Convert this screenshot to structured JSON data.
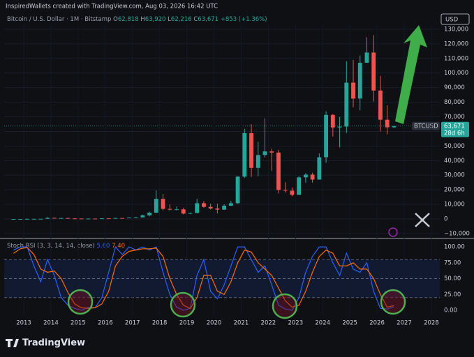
{
  "header": {
    "watermark": "InspiredWallets created with TradingView.com, Aug 03, 2026 16:42 UTC",
    "currency": "USD",
    "brand": "TradingView"
  },
  "chart_data": [
    {
      "type": "candlestick",
      "title": "Bitcoin / U.S. Dollar · 1M · Bitstamp",
      "ohlc_legend": [
        {
          "label": "O",
          "value": "62,818"
        },
        {
          "label": "H",
          "value": "63,920"
        },
        {
          "label": "L",
          "value": "62,216"
        },
        {
          "label": "C",
          "value": "63,671"
        }
      ],
      "change": "+853 (+1.36%)",
      "symbol": "BTCUSD",
      "last_price": {
        "value": 63671,
        "label": "63,671"
      },
      "countdown": "28d 6h",
      "up_color": "#26a69a",
      "down_color": "#ef5350",
      "x": [
        2012.625,
        2012.875,
        2013.125,
        2013.375,
        2013.625,
        2013.875,
        2014.125,
        2014.375,
        2014.625,
        2014.875,
        2015.125,
        2015.375,
        2015.625,
        2015.875,
        2016.125,
        2016.375,
        2016.625,
        2016.875,
        2017.125,
        2017.375,
        2017.625,
        2017.875,
        2018.125,
        2018.375,
        2018.625,
        2018.875,
        2019.125,
        2019.375,
        2019.625,
        2019.875,
        2020.125,
        2020.375,
        2020.625,
        2020.875,
        2021.125,
        2021.375,
        2021.625,
        2021.875,
        2022.125,
        2022.375,
        2022.625,
        2022.875,
        2023.125,
        2023.375,
        2023.625,
        2023.875,
        2024.125,
        2024.375,
        2024.625,
        2024.875,
        2025.125,
        2025.375,
        2025.625,
        2025.875,
        2026.125,
        2026.375,
        2026.625
      ],
      "open": [
        7,
        12,
        13,
        93,
        97,
        125,
        750,
        450,
        640,
        390,
        320,
        245,
        265,
        235,
        430,
        415,
        670,
        610,
        960,
        1080,
        2500,
        4300,
        13800,
        6900,
        6400,
        6600,
        3700,
        4100,
        10800,
        8300,
        7200,
        6400,
        9100,
        10800,
        29000,
        58800,
        35000,
        43800,
        46300,
        45500,
        19900,
        19400,
        16500,
        28500,
        30400,
        27000,
        42300,
        71300,
        62700,
        63300,
        93400,
        82500,
        107000,
        114000,
        88000,
        68000,
        62818
      ],
      "high": [
        15,
        13,
        266,
        130,
        200,
        1160,
        1000,
        680,
        650,
        460,
        320,
        300,
        300,
        500,
        440,
        780,
        670,
        980,
        1350,
        3000,
        5000,
        19600,
        17200,
        9900,
        8500,
        7500,
        4200,
        13800,
        12300,
        10500,
        10500,
        10000,
        12500,
        29300,
        61800,
        64900,
        52900,
        69000,
        48200,
        47400,
        25200,
        21500,
        29200,
        31400,
        31800,
        45000,
        73800,
        72000,
        70000,
        108000,
        109000,
        112000,
        124500,
        126000,
        98000,
        78000,
        63920
      ],
      "low": [
        7,
        10,
        13,
        65,
        85,
        120,
        400,
        420,
        330,
        300,
        170,
        220,
        200,
        230,
        360,
        410,
        540,
        600,
        750,
        1050,
        1800,
        4200,
        5900,
        5800,
        5900,
        3100,
        3300,
        4000,
        7700,
        6500,
        3800,
        6200,
        8900,
        10400,
        28100,
        28800,
        29300,
        42000,
        32900,
        17600,
        18100,
        15500,
        16500,
        24700,
        24900,
        26900,
        38500,
        56500,
        49000,
        58900,
        76500,
        74500,
        107000,
        80500,
        60000,
        58000,
        62216
      ],
      "close": [
        12,
        13,
        93,
        97,
        125,
        750,
        450,
        640,
        390,
        320,
        245,
        265,
        235,
        430,
        415,
        670,
        610,
        960,
        1080,
        2500,
        4300,
        13800,
        6900,
        6400,
        6600,
        3700,
        4100,
        10800,
        8300,
        7200,
        6400,
        9100,
        10800,
        29000,
        58800,
        35000,
        43800,
        46300,
        45500,
        19900,
        19400,
        16500,
        28500,
        30400,
        27000,
        42300,
        71300,
        62700,
        63300,
        93400,
        82500,
        107000,
        114000,
        88000,
        68000,
        62800,
        63671
      ],
      "xlim": [
        2012.28,
        2028.31
      ],
      "ylim": [
        -12400,
        133300
      ],
      "yticks": [
        {
          "value": 130000,
          "label": "130,000"
        },
        {
          "value": 120000,
          "label": "120,000"
        },
        {
          "value": 110000,
          "label": "110,000"
        },
        {
          "value": 100000,
          "label": "100,000"
        },
        {
          "value": 90000,
          "label": "90,000"
        },
        {
          "value": 80000,
          "label": "80,000"
        },
        {
          "value": 70000,
          "label": "70,000"
        },
        {
          "value": 60000,
          "label": "60,000"
        },
        {
          "value": 50000,
          "label": "50,000"
        },
        {
          "value": 40000,
          "label": "40,000"
        },
        {
          "value": 30000,
          "label": "30,000"
        },
        {
          "value": 20000,
          "label": "20,000"
        },
        {
          "value": 10000,
          "label": "10,000"
        },
        0,
        {
          "value": -10000,
          "label": "−10,000"
        }
      ],
      "grid": true
    },
    {
      "type": "line",
      "title": "Stoch RSI (3, 3, 14, 14, close)",
      "x": [
        2012.625,
        2012.875,
        2013.125,
        2013.375,
        2013.625,
        2013.875,
        2014.125,
        2014.375,
        2014.625,
        2014.875,
        2015.125,
        2015.375,
        2015.625,
        2015.875,
        2016.125,
        2016.375,
        2016.625,
        2016.875,
        2017.125,
        2017.375,
        2017.625,
        2017.875,
        2018.125,
        2018.375,
        2018.625,
        2018.875,
        2019.125,
        2019.375,
        2019.625,
        2019.875,
        2020.125,
        2020.375,
        2020.625,
        2020.875,
        2021.125,
        2021.375,
        2021.625,
        2021.875,
        2022.125,
        2022.375,
        2022.625,
        2022.875,
        2023.125,
        2023.375,
        2023.625,
        2023.875,
        2024.125,
        2024.375,
        2024.625,
        2024.875,
        2025.125,
        2025.375,
        2025.625,
        2025.875,
        2026.125,
        2026.375,
        2026.625
      ],
      "series": [
        {
          "color": "#2962ff",
          "legend_value": "5.60",
          "values": [
            95,
            100,
            100,
            70,
            45,
            80,
            55,
            20,
            8,
            3,
            0,
            5,
            4,
            20,
            60,
            100,
            88,
            100,
            95,
            100,
            95,
            100,
            60,
            25,
            5,
            0,
            3,
            55,
            80,
            30,
            18,
            40,
            70,
            100,
            100,
            80,
            60,
            70,
            40,
            8,
            2,
            0,
            20,
            60,
            85,
            100,
            100,
            75,
            55,
            90,
            65,
            60,
            75,
            30,
            3,
            2,
            5.6
          ]
        },
        {
          "color": "#ff6d00",
          "legend_value": "7.40",
          "values": [
            90,
            97,
            99,
            88,
            65,
            60,
            62,
            50,
            28,
            10,
            4,
            3,
            4,
            10,
            30,
            70,
            85,
            93,
            95,
            97,
            97,
            98,
            85,
            50,
            25,
            8,
            3,
            20,
            55,
            55,
            30,
            25,
            45,
            75,
            95,
            92,
            75,
            65,
            55,
            35,
            15,
            5,
            8,
            30,
            60,
            85,
            95,
            90,
            70,
            70,
            75,
            65,
            65,
            50,
            25,
            5,
            7.4
          ]
        }
      ],
      "band": [
        20,
        80
      ],
      "levels": [
        20,
        50,
        80
      ],
      "xlim": [
        2012.28,
        2028.31
      ],
      "xticks": [
        2013,
        2014,
        2015,
        2016,
        2017,
        2018,
        2019,
        2020,
        2021,
        2022,
        2023,
        2024,
        2025,
        2026,
        2027,
        2028
      ],
      "ylim": [
        -7.7,
        110
      ],
      "yticks": [
        {
          "value": 100,
          "label": "100.00"
        },
        {
          "value": 75,
          "label": "75.00"
        },
        {
          "value": 50,
          "label": "50.00"
        },
        {
          "value": 25,
          "label": "25.00"
        },
        {
          "value": 0,
          "label": "0.00"
        }
      ],
      "grid": true
    }
  ]
}
